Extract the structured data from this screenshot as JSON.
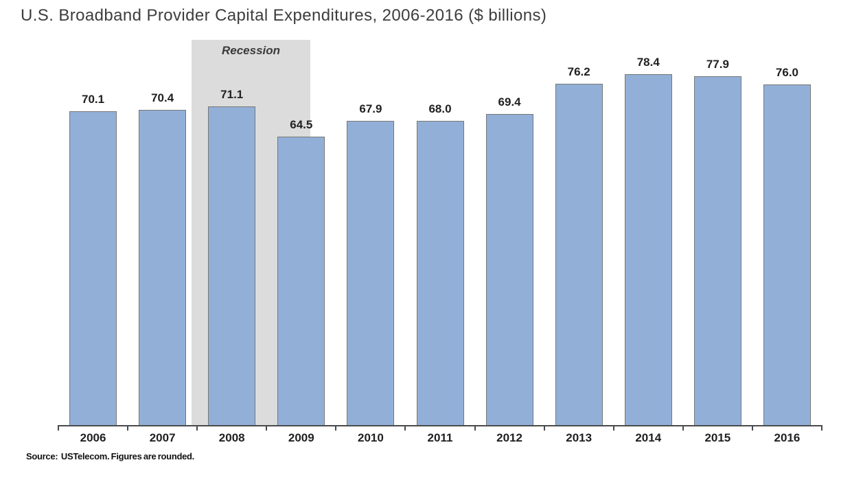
{
  "title": "U.S. Broadband Provider Capital Expenditures, 2006-2016 ($ billions)",
  "source_note": "Source:  USTelecom. Figures are rounded.",
  "colors": {
    "bar_fill": "#92b0d7",
    "bar_border": "#767676",
    "recession_band": "#dcdcdc",
    "axis": "#4a4a4a",
    "label_text": "#212121",
    "title_text": "#3d3d3d"
  },
  "chart_data": {
    "type": "bar",
    "title": "U.S. Broadband Provider Capital Expenditures, 2006-2016 ($ billions)",
    "categories": [
      "2006",
      "2007",
      "2008",
      "2009",
      "2010",
      "2011",
      "2012",
      "2013",
      "2014",
      "2015",
      "2016"
    ],
    "values": [
      70.1,
      70.4,
      71.1,
      64.5,
      67.9,
      68.0,
      69.4,
      76.2,
      78.4,
      77.9,
      76.0
    ],
    "xlabel": "",
    "ylabel": "",
    "ylim": [
      0,
      86
    ],
    "grid": false,
    "legend": false,
    "value_labels_shown": true,
    "annotations": [
      {
        "type": "band",
        "label": "Recession",
        "x_from_cell": 1.92,
        "x_to_cell": 3.63,
        "color": "#dcdcdc"
      }
    ]
  }
}
